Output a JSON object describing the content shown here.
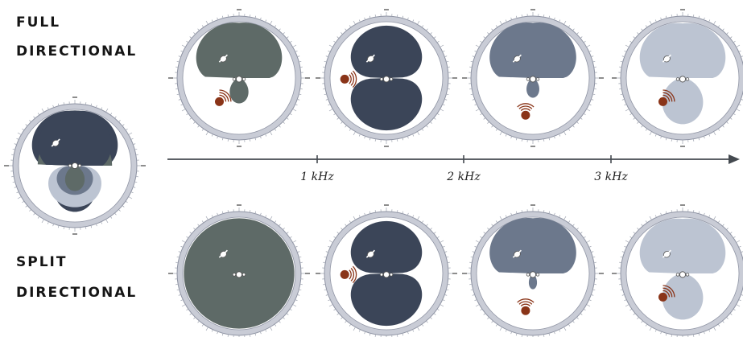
{
  "labels": {
    "full_line1": "FULL",
    "full_line2": "DIRECTIONAL",
    "split_line1": "SPLIT",
    "split_line2": "DIRECTIONAL"
  },
  "axis": {
    "ticks": [
      "1 kHz",
      "2 kHz",
      "3 kHz"
    ]
  },
  "colors": {
    "ring": "#c9ccd6",
    "ring_edge": "#8e93a3",
    "inner": "#ffffff",
    "gray_green": "#5e6a67",
    "navy": "#3b4558",
    "slate": "#6c788c",
    "light": "#bcc4d2",
    "source": "#8a3418",
    "arrow": "#444a50"
  },
  "rows": {
    "full": [
      {
        "shape": "cardioid_big_lobe",
        "fill": "gray_green",
        "source_pos": "lower-left"
      },
      {
        "shape": "figure_eight",
        "fill": "navy",
        "source_pos": "left"
      },
      {
        "shape": "cardioid_small_lobe",
        "fill": "slate",
        "source_pos": "bottom"
      },
      {
        "shape": "cardioid_lower_lobe",
        "fill": "light",
        "source_pos": "lower-left"
      }
    ],
    "split": [
      {
        "shape": "omni",
        "fill": "gray_green",
        "source_pos": "none"
      },
      {
        "shape": "figure_eight",
        "fill": "navy",
        "source_pos": "left"
      },
      {
        "shape": "cardioid_tail",
        "fill": "slate",
        "source_pos": "bottom"
      },
      {
        "shape": "cardioid_lower_lobe",
        "fill": "light",
        "source_pos": "lower-left"
      }
    ]
  }
}
